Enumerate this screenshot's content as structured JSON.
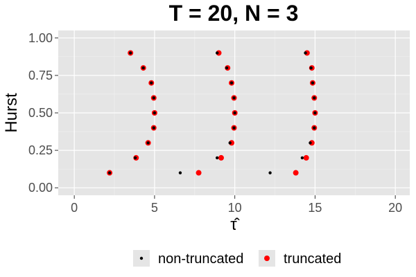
{
  "colors": {
    "panel_bg": "#E5E5E5",
    "grid_major": "#FFFFFF",
    "grid_minor": "#F2F2F2",
    "tick": "#333333",
    "legend_key_bg": "#E5E5E5"
  },
  "chart_data": {
    "type": "scatter",
    "title": "T = 20, N = 3",
    "xlabel": "τ̂",
    "ylabel": "Hurst",
    "xlim": [
      -1,
      20.9
    ],
    "ylim": [
      -0.05,
      1.05
    ],
    "x_ticks": [
      0,
      5,
      10,
      15,
      20
    ],
    "x_tick_labels": [
      "0",
      "5",
      "10",
      "15",
      "20"
    ],
    "y_ticks": [
      0,
      0.25,
      0.5,
      0.75,
      1.0
    ],
    "y_tick_labels": [
      "0.00",
      "0.25",
      "0.50",
      "0.75",
      "1.00"
    ],
    "grid": true,
    "legend_position": "bottom",
    "series": [
      {
        "name": "non-truncated",
        "color": "#000000",
        "marker_radius": 2.2,
        "points": [
          [
            2.2,
            0.1
          ],
          [
            6.6,
            0.1
          ],
          [
            12.2,
            0.1
          ],
          [
            3.8,
            0.2
          ],
          [
            8.9,
            0.2
          ],
          [
            14.2,
            0.2
          ],
          [
            4.6,
            0.3
          ],
          [
            9.7,
            0.3
          ],
          [
            14.7,
            0.3
          ],
          [
            4.95,
            0.4
          ],
          [
            9.95,
            0.4
          ],
          [
            14.95,
            0.4
          ],
          [
            5.0,
            0.5
          ],
          [
            10.0,
            0.5
          ],
          [
            15.0,
            0.5
          ],
          [
            4.95,
            0.6
          ],
          [
            9.95,
            0.6
          ],
          [
            14.95,
            0.6
          ],
          [
            4.8,
            0.7
          ],
          [
            9.8,
            0.7
          ],
          [
            14.85,
            0.7
          ],
          [
            4.3,
            0.8
          ],
          [
            9.5,
            0.8
          ],
          [
            14.75,
            0.8
          ],
          [
            3.5,
            0.9
          ],
          [
            8.9,
            0.9
          ],
          [
            14.4,
            0.9
          ]
        ]
      },
      {
        "name": "truncated",
        "color": "#FF0000",
        "marker_radius": 4,
        "points": [
          [
            2.2,
            0.1
          ],
          [
            7.75,
            0.1
          ],
          [
            13.8,
            0.1
          ],
          [
            3.85,
            0.2
          ],
          [
            9.15,
            0.2
          ],
          [
            14.45,
            0.2
          ],
          [
            4.6,
            0.3
          ],
          [
            9.8,
            0.3
          ],
          [
            14.8,
            0.3
          ],
          [
            4.95,
            0.4
          ],
          [
            9.95,
            0.4
          ],
          [
            14.95,
            0.4
          ],
          [
            5.0,
            0.5
          ],
          [
            10.0,
            0.5
          ],
          [
            15.0,
            0.5
          ],
          [
            4.95,
            0.6
          ],
          [
            9.95,
            0.6
          ],
          [
            14.95,
            0.6
          ],
          [
            4.8,
            0.7
          ],
          [
            9.8,
            0.7
          ],
          [
            14.85,
            0.7
          ],
          [
            4.3,
            0.8
          ],
          [
            9.55,
            0.8
          ],
          [
            14.8,
            0.8
          ],
          [
            3.5,
            0.9
          ],
          [
            9.0,
            0.9
          ],
          [
            14.5,
            0.9
          ]
        ]
      }
    ],
    "legend": {
      "items": [
        {
          "label": "non-truncated",
          "color": "#000000",
          "marker_radius": 2.2
        },
        {
          "label": "truncated",
          "color": "#FF0000",
          "marker_radius": 4
        }
      ]
    }
  }
}
